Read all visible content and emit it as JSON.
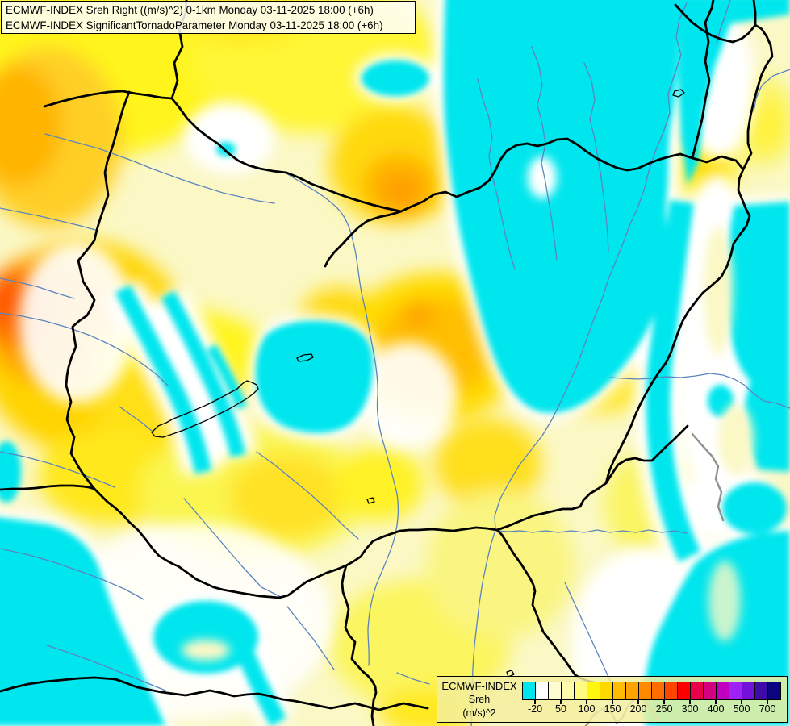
{
  "title_box": {
    "line1": "ECMWF-INDEX Sreh Right ((m/s)^2) 0-1km Monday 03-11-2025 18:00 (+6h)",
    "line2": "ECMWF-INDEX SignificantTornadoParameter Monday 03-11-2025 18:00 (+6h)"
  },
  "legend": {
    "product": "ECMWF-INDEX",
    "parameter": "Sreh",
    "units": "(m/s)^2",
    "colors": [
      "#00e6ee",
      "#ffffff",
      "#fffcd2",
      "#fffcab",
      "#fffb7e",
      "#fff50f",
      "#ffd800",
      "#ffbc00",
      "#ffa300",
      "#ff8a00",
      "#ff6d00",
      "#ff4500",
      "#fc0000",
      "#ea0048",
      "#d40082",
      "#bf00c0",
      "#9f22f5",
      "#7212d8",
      "#3f0ba8",
      "#0b0480"
    ],
    "tick_labels": [
      "-20",
      "50",
      "100",
      "150",
      "200",
      "250",
      "300",
      "400",
      "500",
      "700"
    ],
    "tick_boundaries": [
      1,
      3,
      5,
      7,
      9,
      11,
      13,
      15,
      17,
      19
    ]
  },
  "map": {
    "palette": {
      "cyan_negative": "#00e6ee",
      "white_neutral": "#ffffff",
      "pale_yellow_base": "#fbf8c6",
      "yellow": "#fff51e",
      "gold": "#ffd900",
      "amber": "#ffb400",
      "orange": "#ff8900",
      "deep_orange": "#ff6d00",
      "country_border": "#000000",
      "river": "#5b84be",
      "major_river": "#8f8f8f"
    }
  }
}
